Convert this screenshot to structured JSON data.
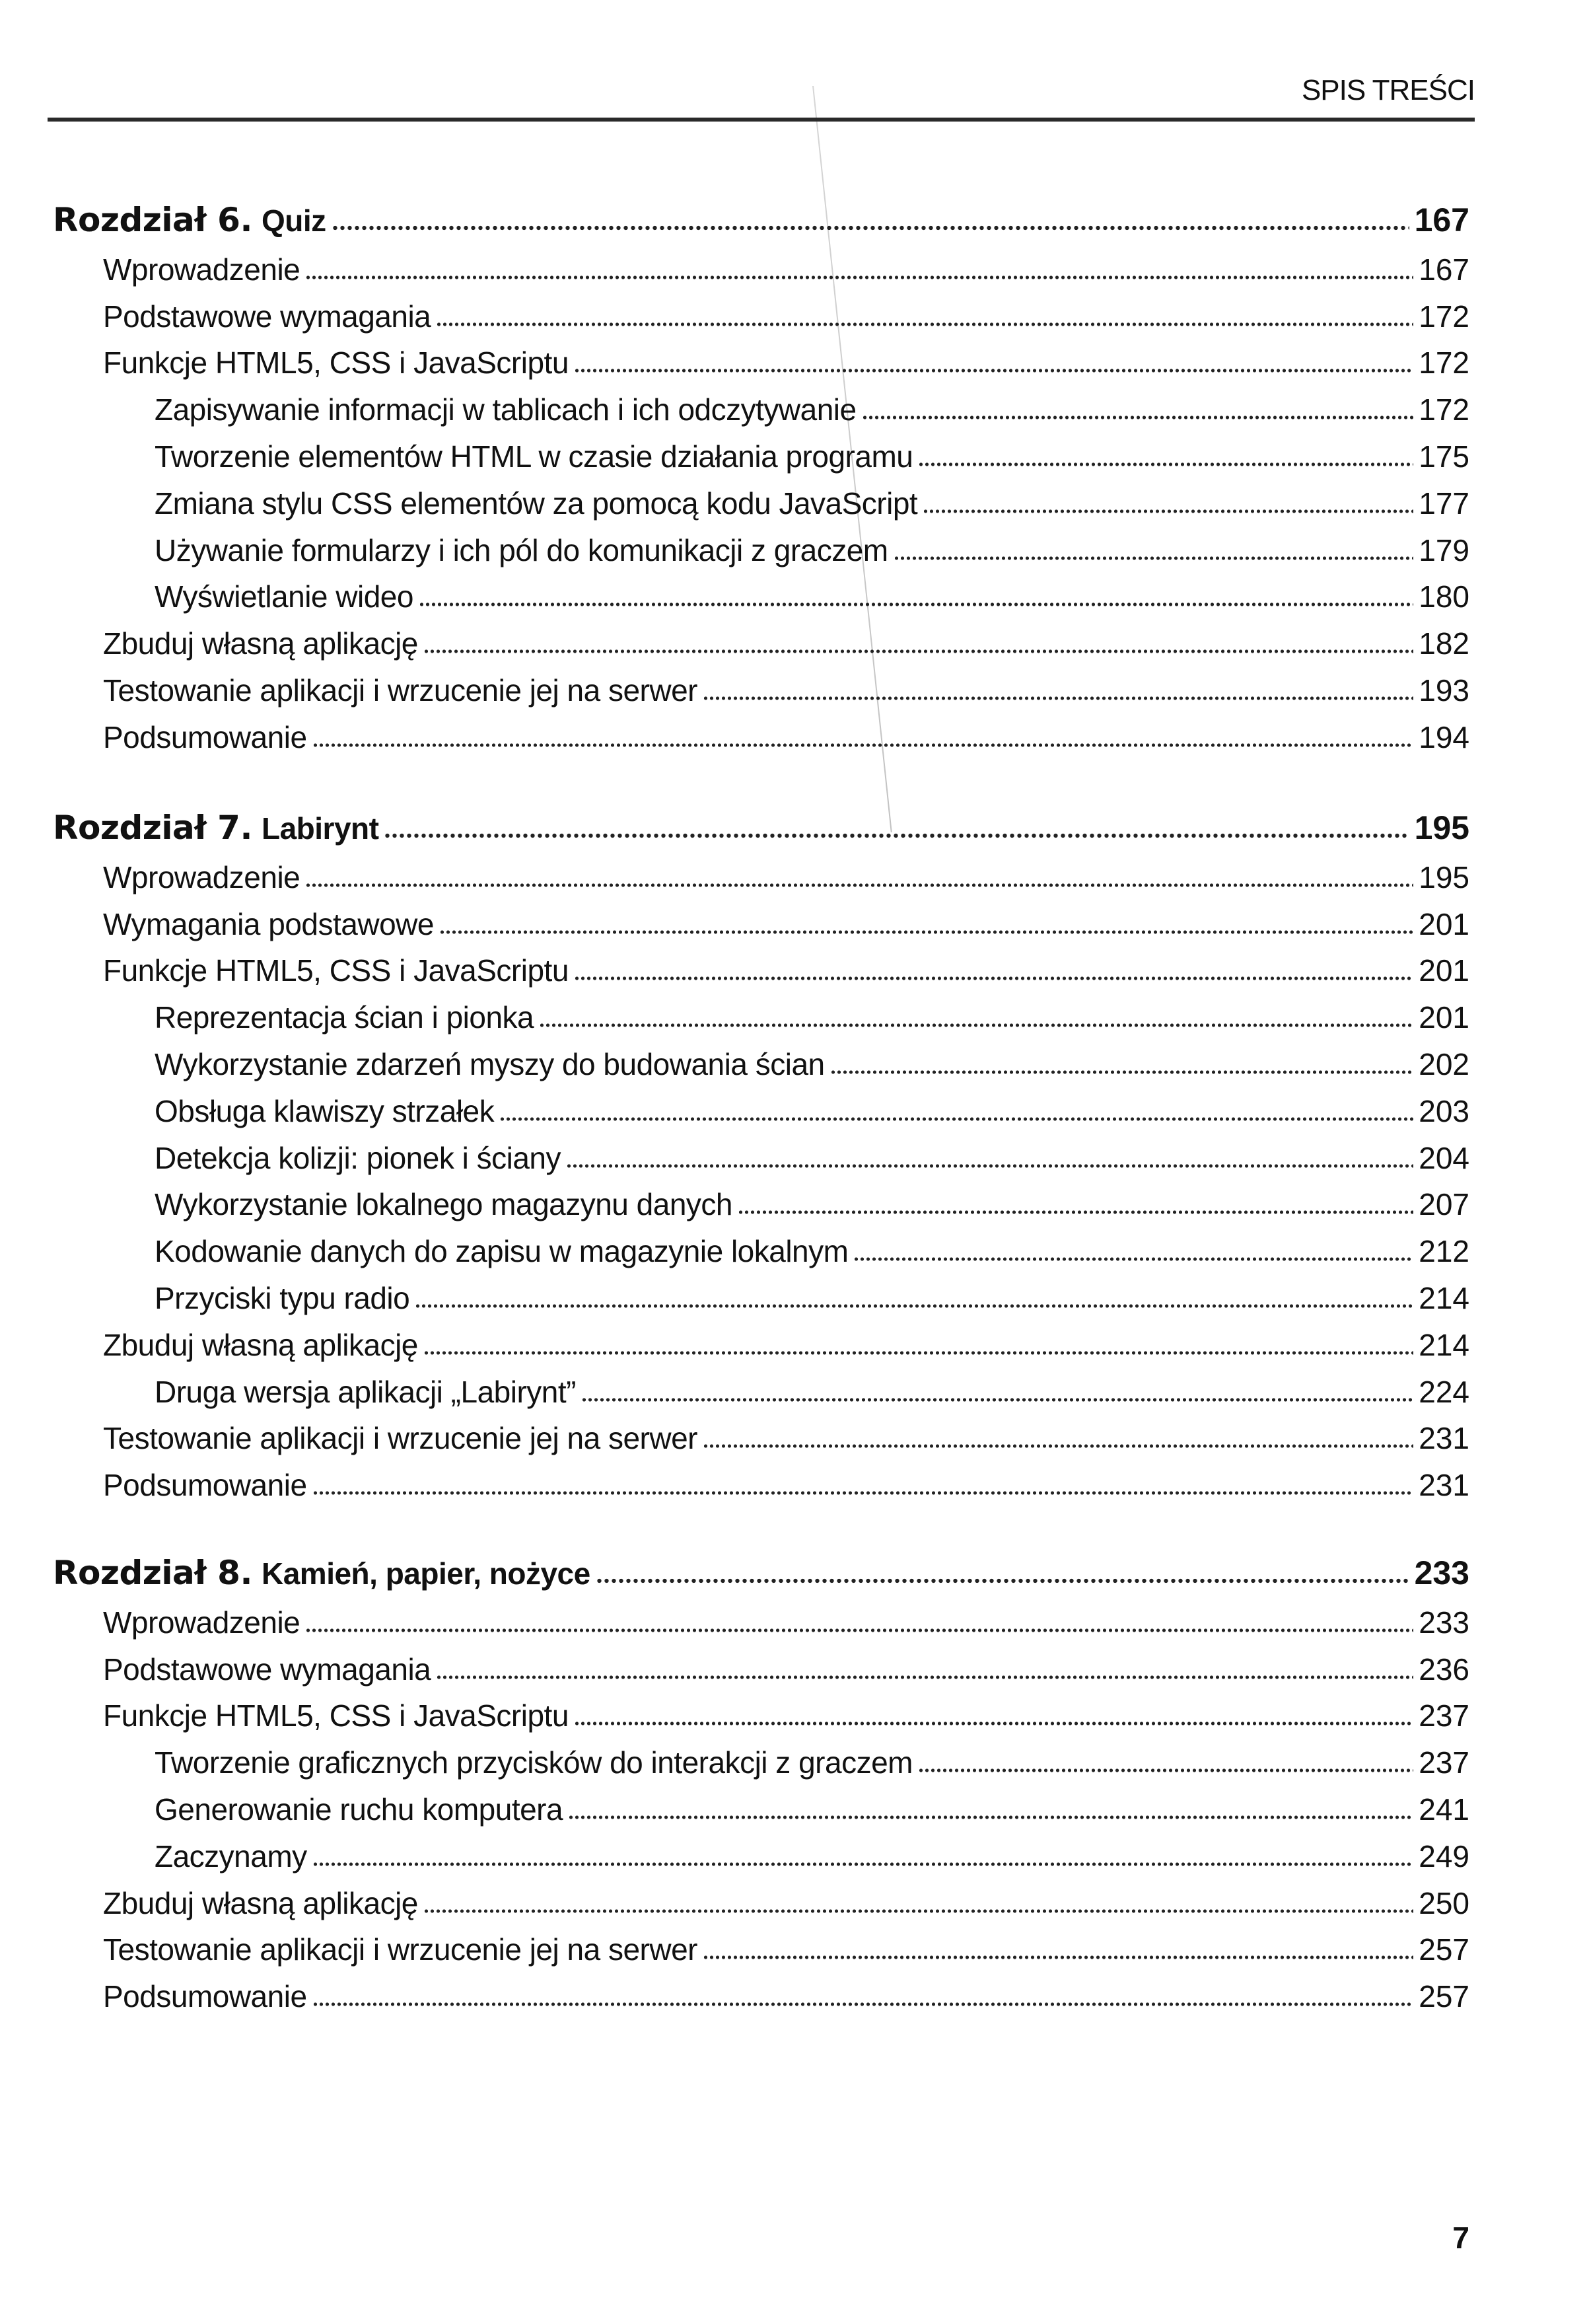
{
  "header": {
    "title": "SPIS TREŚCI"
  },
  "page_number": "7",
  "chapters": [
    {
      "word": "Rozdział 6.",
      "title": "Quiz",
      "page": "167",
      "entries": [
        {
          "level": 1,
          "label": "Wprowadzenie",
          "page": "167"
        },
        {
          "level": 1,
          "label": "Podstawowe wymagania",
          "page": "172"
        },
        {
          "level": 1,
          "label": "Funkcje HTML5, CSS i JavaScriptu",
          "page": "172"
        },
        {
          "level": 2,
          "label": "Zapisywanie informacji w tablicach i ich odczytywanie",
          "page": "172"
        },
        {
          "level": 2,
          "label": "Tworzenie elementów HTML w czasie działania programu",
          "page": "175"
        },
        {
          "level": 2,
          "label": "Zmiana stylu CSS elementów za pomocą kodu JavaScript",
          "page": "177"
        },
        {
          "level": 2,
          "label": "Używanie formularzy i ich pól do komunikacji z graczem",
          "page": "179"
        },
        {
          "level": 2,
          "label": "Wyświetlanie wideo",
          "page": "180"
        },
        {
          "level": 1,
          "label": "Zbuduj własną aplikację",
          "page": "182"
        },
        {
          "level": 1,
          "label": "Testowanie aplikacji i wrzucenie jej na serwer",
          "page": "193"
        },
        {
          "level": 1,
          "label": "Podsumowanie",
          "page": "194"
        }
      ]
    },
    {
      "word": "Rozdział 7.",
      "title": "Labirynt",
      "page": "195",
      "entries": [
        {
          "level": 1,
          "label": "Wprowadzenie",
          "page": "195"
        },
        {
          "level": 1,
          "label": "Wymagania podstawowe",
          "page": "201"
        },
        {
          "level": 1,
          "label": "Funkcje HTML5, CSS i JavaScriptu",
          "page": "201"
        },
        {
          "level": 2,
          "label": "Reprezentacja ścian i pionka",
          "page": "201"
        },
        {
          "level": 2,
          "label": "Wykorzystanie zdarzeń myszy do budowania ścian",
          "page": "202"
        },
        {
          "level": 2,
          "label": "Obsługa klawiszy strzałek",
          "page": "203"
        },
        {
          "level": 2,
          "label": "Detekcja kolizji: pionek i ściany",
          "page": "204"
        },
        {
          "level": 2,
          "label": "Wykorzystanie lokalnego magazynu danych",
          "page": "207"
        },
        {
          "level": 2,
          "label": "Kodowanie danych do zapisu w magazynie lokalnym",
          "page": "212"
        },
        {
          "level": 2,
          "label": "Przyciski typu radio",
          "page": "214"
        },
        {
          "level": 1,
          "label": "Zbuduj własną aplikację",
          "page": "214"
        },
        {
          "level": 2,
          "label": "Druga wersja aplikacji „Labirynt”",
          "page": "224"
        },
        {
          "level": 1,
          "label": "Testowanie aplikacji i wrzucenie jej na serwer",
          "page": "231"
        },
        {
          "level": 1,
          "label": "Podsumowanie",
          "page": "231"
        }
      ]
    },
    {
      "word": "Rozdział 8.",
      "title": "Kamień, papier, nożyce",
      "page": "233",
      "entries": [
        {
          "level": 1,
          "label": "Wprowadzenie",
          "page": "233"
        },
        {
          "level": 1,
          "label": "Podstawowe wymagania",
          "page": "236"
        },
        {
          "level": 1,
          "label": "Funkcje HTML5, CSS i JavaScriptu",
          "page": "237"
        },
        {
          "level": 2,
          "label": "Tworzenie graficznych przycisków do interakcji z graczem",
          "page": "237"
        },
        {
          "level": 2,
          "label": "Generowanie ruchu komputera",
          "page": "241"
        },
        {
          "level": 2,
          "label": "Zaczynamy",
          "page": "249"
        },
        {
          "level": 1,
          "label": "Zbuduj własną aplikację",
          "page": "250"
        },
        {
          "level": 1,
          "label": "Testowanie aplikacji i wrzucenie jej na serwer",
          "page": "257"
        },
        {
          "level": 1,
          "label": "Podsumowanie",
          "page": "257"
        }
      ]
    }
  ]
}
